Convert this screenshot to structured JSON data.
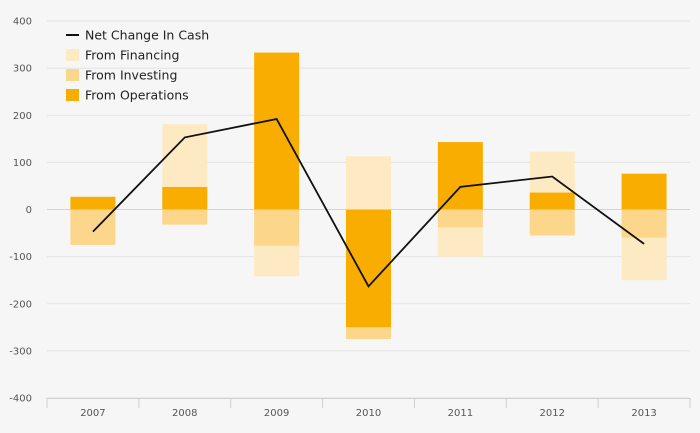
{
  "chart_data": {
    "type": "bar",
    "stacked": true,
    "categories": [
      "2007",
      "2008",
      "2009",
      "2010",
      "2011",
      "2012",
      "2013"
    ],
    "series": [
      {
        "name": "From Operations",
        "color": "#f9ad00",
        "values": [
          27,
          48,
          333,
          -250,
          143,
          36,
          76
        ]
      },
      {
        "name": "From Investing",
        "color": "#fcd68a",
        "values": [
          -75,
          -32,
          -77,
          -25,
          -38,
          -55,
          -60
        ]
      },
      {
        "name": "From Financing",
        "color": "#feeac2",
        "values": [
          0,
          133,
          -65,
          113,
          -62,
          87,
          -90
        ]
      }
    ],
    "line": {
      "name": "Net Change In Cash",
      "color": "#111111",
      "values": [
        -47,
        153,
        192,
        -163,
        48,
        70,
        -73
      ]
    },
    "legend_order": [
      "Net Change In Cash",
      "From Financing",
      "From Investing",
      "From Operations"
    ],
    "legend_position": "top-left",
    "ylim": [
      -400,
      400
    ],
    "yticks": [
      "400",
      "300",
      "200",
      "100",
      "0",
      "-100",
      "-200",
      "-300",
      "-400"
    ],
    "ytick_values": [
      400,
      300,
      200,
      100,
      0,
      -100,
      -200,
      -300,
      -400
    ],
    "grid": true,
    "title": "",
    "xlabel": "",
    "ylabel": ""
  }
}
